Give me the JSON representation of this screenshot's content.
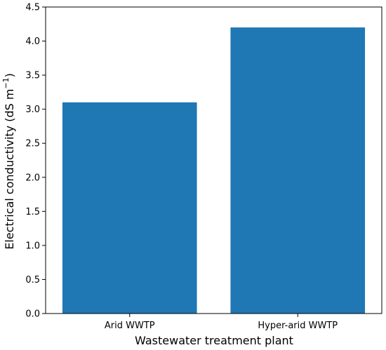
{
  "chart_data": {
    "type": "bar",
    "title": "",
    "categories": [
      "Arid WWTP",
      "Hyper-arid WWTP"
    ],
    "values": [
      3.1,
      4.2
    ],
    "xlabel": "Wastewater treatment plant",
    "ylabel": "Electrical conductivity (dS m",
    "ylabel_sup": "−1",
    "ylabel_end": ")",
    "ylim": [
      0,
      4.5
    ],
    "yticks": [
      "0.0",
      "0.5",
      "1.0",
      "1.5",
      "2.0",
      "2.5",
      "3.0",
      "3.5",
      "4.0",
      "4.5"
    ],
    "bar_color": "#1f77b4",
    "grid": false,
    "legend": "none"
  }
}
